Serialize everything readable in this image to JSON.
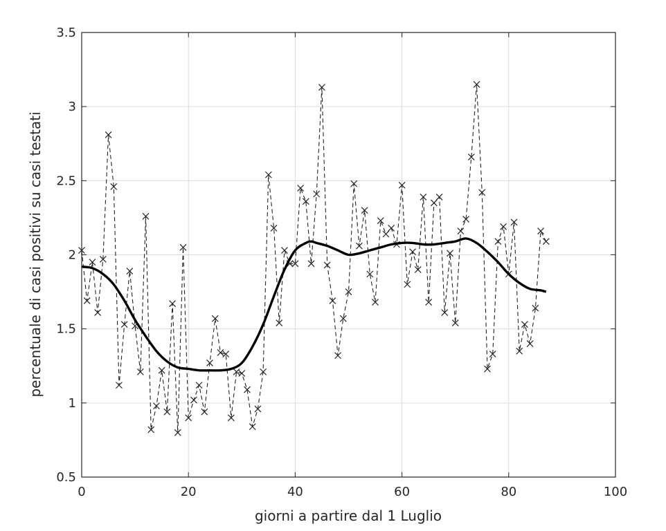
{
  "chart_data": {
    "type": "line",
    "title": "",
    "xlabel": "giorni a partire dal 1 Luglio",
    "ylabel": "percentuale di casi positivi su casi testati",
    "xlim": [
      0,
      100
    ],
    "ylim": [
      0.5,
      3.5
    ],
    "xticks": [
      "0",
      "20",
      "40",
      "60",
      "80",
      "100"
    ],
    "yticks": [
      "0.5",
      "1",
      "1.5",
      "2",
      "2.5",
      "3",
      "3.5"
    ],
    "grid": true,
    "legend": "none",
    "colors": {
      "axis": "#262626",
      "grid": "#dcdcdc",
      "data": "#222222",
      "trend": "#000000"
    },
    "series": [
      {
        "style": "dashed-with-x-markers",
        "x": [
          0,
          1,
          2,
          3,
          4,
          5,
          6,
          7,
          8,
          9,
          10,
          11,
          12,
          13,
          14,
          15,
          16,
          17,
          18,
          19,
          20,
          21,
          22,
          23,
          24,
          25,
          26,
          27,
          28,
          29,
          30,
          31,
          32,
          33,
          34,
          35,
          36,
          37,
          38,
          39,
          40,
          41,
          42,
          43,
          44,
          45,
          46,
          47,
          48,
          49,
          50,
          51,
          52,
          53,
          54,
          55,
          56,
          57,
          58,
          59,
          60,
          61,
          62,
          63,
          64,
          65,
          66,
          67,
          68,
          69,
          70,
          71,
          72,
          73,
          74,
          75,
          76,
          77,
          78,
          79,
          80,
          81,
          82,
          83,
          84,
          85,
          86,
          87
        ],
        "values": [
          2.03,
          1.69,
          1.95,
          1.61,
          1.97,
          2.81,
          2.46,
          1.12,
          1.53,
          1.89,
          1.52,
          1.21,
          2.26,
          0.82,
          0.98,
          1.22,
          0.94,
          1.67,
          0.8,
          2.05,
          0.9,
          1.02,
          1.12,
          0.94,
          1.27,
          1.57,
          1.34,
          1.33,
          0.9,
          1.21,
          1.2,
          1.09,
          0.84,
          0.96,
          1.21,
          2.54,
          2.18,
          1.54,
          2.03,
          1.94,
          1.94,
          2.45,
          2.36,
          1.94,
          2.41,
          3.13,
          1.93,
          1.69,
          1.32,
          1.57,
          1.75,
          2.48,
          2.06,
          2.3,
          1.87,
          1.68,
          2.23,
          2.14,
          2.18,
          2.07,
          2.47,
          1.8,
          2.02,
          1.9,
          2.39,
          1.68,
          2.35,
          2.39,
          1.61,
          2.01,
          1.54,
          2.16,
          2.24,
          2.66,
          3.15,
          2.42,
          1.23,
          1.33,
          2.09,
          2.19,
          1.87,
          2.22,
          1.35,
          1.53,
          1.4,
          1.64,
          2.16,
          2.09
        ]
      },
      {
        "style": "solid-thick",
        "x": [
          0,
          2,
          4,
          6,
          8,
          10,
          12,
          14,
          16,
          18,
          20,
          22,
          24,
          26,
          28,
          30,
          32,
          34,
          36,
          38,
          40,
          42,
          43,
          44,
          46,
          48,
          50,
          52,
          54,
          56,
          58,
          60,
          62,
          64,
          66,
          68,
          70,
          72,
          74,
          76,
          78,
          80,
          82,
          84,
          86,
          87
        ],
        "values": [
          1.92,
          1.91,
          1.87,
          1.8,
          1.69,
          1.56,
          1.45,
          1.35,
          1.28,
          1.24,
          1.23,
          1.22,
          1.22,
          1.22,
          1.23,
          1.27,
          1.38,
          1.53,
          1.72,
          1.9,
          2.03,
          2.08,
          2.09,
          2.08,
          2.06,
          2.03,
          2.0,
          2.01,
          2.03,
          2.05,
          2.07,
          2.08,
          2.08,
          2.07,
          2.07,
          2.08,
          2.09,
          2.11,
          2.08,
          2.02,
          1.95,
          1.87,
          1.81,
          1.77,
          1.76,
          1.75
        ]
      }
    ]
  }
}
